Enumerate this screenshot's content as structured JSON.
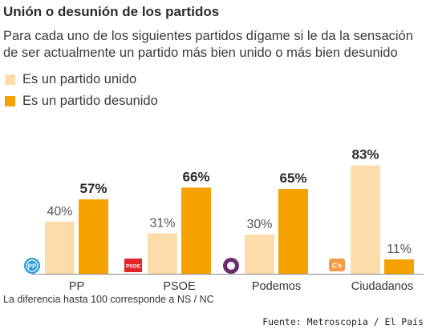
{
  "header": {
    "title": "Unión o desunión de los partidos",
    "subtitle": "Para cada uno de los siguientes partidos dígame si le da la sensación de ser actualmente un partido más bien unido o más bien desunido"
  },
  "colors": {
    "unido": "#fcdcaa",
    "desunido": "#f5a200",
    "axis": "#888888"
  },
  "chart_data": {
    "type": "bar",
    "categories": [
      "PP",
      "PSOE",
      "Podemos",
      "Ciudadanos"
    ],
    "series": [
      {
        "name": "Es un partido unido",
        "values": [
          40,
          31,
          30,
          83
        ],
        "labels": [
          "40%",
          "31%",
          "30%",
          "83%"
        ]
      },
      {
        "name": "Es un partido desunido",
        "values": [
          57,
          66,
          65,
          11
        ],
        "labels": [
          "57%",
          "66%",
          "65%",
          "11%"
        ]
      }
    ],
    "ylim": [
      0,
      100
    ],
    "legend": "top-left",
    "grid": false
  },
  "logos": [
    {
      "icon": "pp-logo-icon",
      "text": "PP",
      "color": "#2b9bd6"
    },
    {
      "icon": "psoe-logo-icon",
      "text": "PSOE",
      "color": "#e0262b"
    },
    {
      "icon": "podemos-logo-icon",
      "text": "",
      "color": "#6b2c6e"
    },
    {
      "icon": "ciudadanos-logo-icon",
      "text": "C's",
      "color": "#f29c4a"
    }
  ],
  "footnote": "La diferencia hasta 100 corresponde a NS / NC",
  "source": "Fuente: Metroscopia / El País"
}
